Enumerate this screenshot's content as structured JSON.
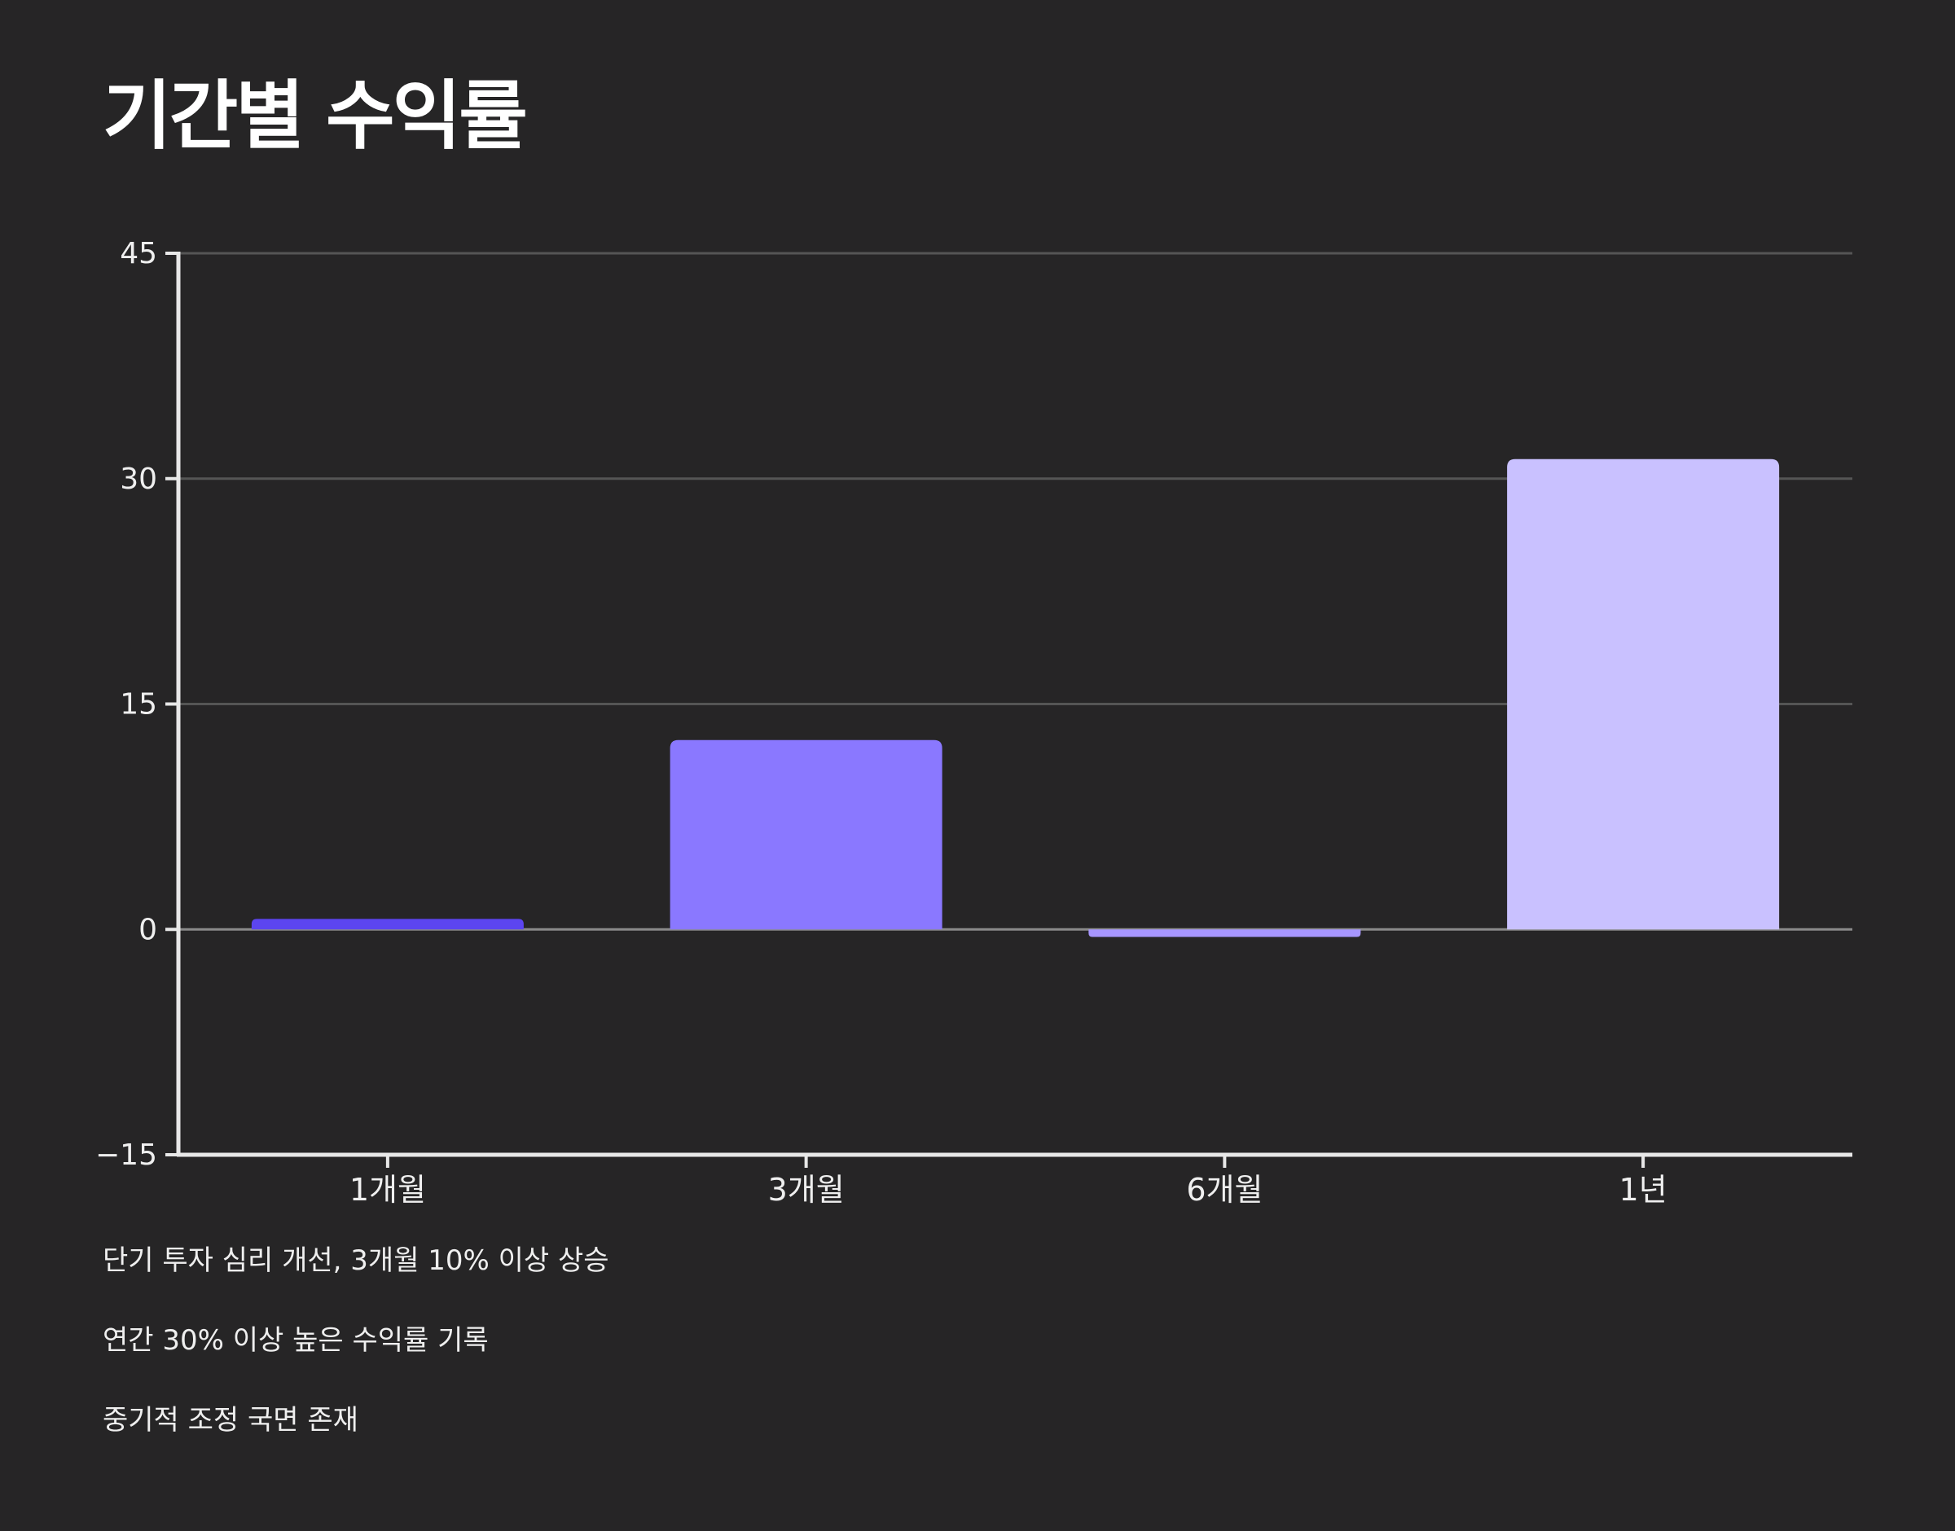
{
  "chart_data": {
    "type": "bar",
    "title": "기간별 수익률",
    "categories": [
      "1개월",
      "3개월",
      "6개월",
      "1년"
    ],
    "values": [
      0.7,
      12.6,
      -0.5,
      31.3
    ],
    "ylim": [
      -15,
      45
    ],
    "yticks": [
      45,
      30,
      15,
      0,
      -15
    ],
    "ytick_labels": [
      "45",
      "30",
      "15",
      "0",
      "−15"
    ],
    "grid": true,
    "legend": "none",
    "colors": [
      "#5c45f0",
      "#8a78ff",
      "#a796ff",
      "#c9c1ff"
    ],
    "annotations": [
      "단기 투자 심리 개선, 3개월 10% 이상 상승",
      "연간 30% 이상 높은 수익률 기록",
      "중기적 조정 국면 존재"
    ]
  },
  "colors": {
    "background": "#262526",
    "axis": "#e8e8e8",
    "grid": "#555555",
    "zero_line": "#8a8a8a",
    "text": "#efefef"
  }
}
